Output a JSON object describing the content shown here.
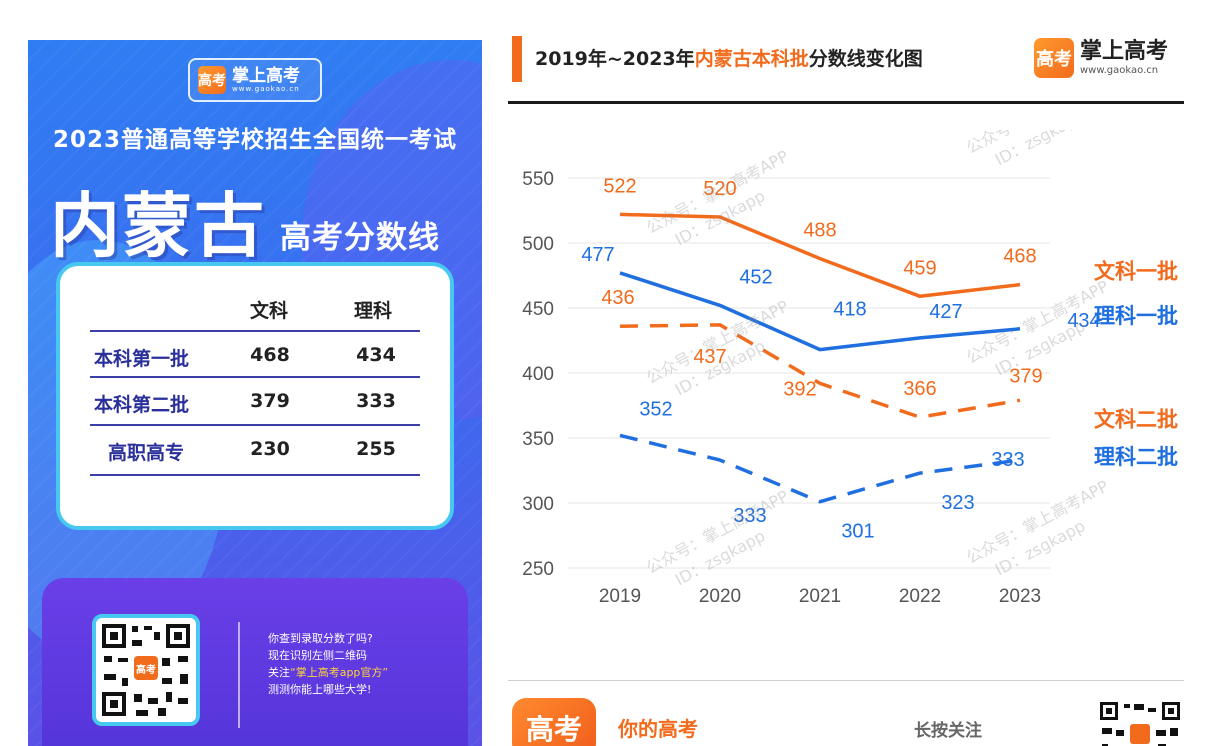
{
  "poster": {
    "logo_name": "掌上高考",
    "logo_url": "www.gaokao.cn",
    "logo_mark": "高考",
    "exam_title": "2023普通高等学校招生全国统一考试",
    "province": "内蒙古",
    "subtitle": "高考分数线",
    "table": {
      "headers": [
        "文科",
        "理科"
      ],
      "rows": [
        {
          "label": "本科第一批",
          "wenke": "468",
          "like": "434"
        },
        {
          "label": "本科第二批",
          "wenke": "379",
          "like": "333"
        },
        {
          "label": "高职高专",
          "wenke": "230",
          "like": "255"
        }
      ]
    },
    "qr_lines": [
      "你查到录取分数了吗?",
      "现在识别左侧二维码",
      "关注",
      "“掌上高考app官方”",
      "测测你能上哪些大学!"
    ]
  },
  "header": {
    "title_prefix": "2019年~2023年",
    "title_highlight": "内蒙古本科批",
    "title_suffix": "分数线变化图",
    "brand_name": "掌上高考",
    "brand_url": "www.gaokao.cn",
    "brand_mark": "高考"
  },
  "footer": {
    "logo_mark": "高考",
    "slogan": "你的高考",
    "follow": "长按关注"
  },
  "chart_data": {
    "type": "line",
    "title": "2019年~2023年内蒙古本科批分数线变化图",
    "categories": [
      "2019",
      "2020",
      "2021",
      "2022",
      "2023"
    ],
    "yticks": [
      550,
      500,
      450,
      400,
      350,
      300,
      250
    ],
    "ylim": [
      250,
      550
    ],
    "xlabel": "",
    "ylabel": "",
    "grid": true,
    "series": [
      {
        "name": "文科一批",
        "values": [
          522,
          520,
          488,
          459,
          468
        ],
        "color": "#f26b1d",
        "dash": false
      },
      {
        "name": "理科一批",
        "values": [
          477,
          452,
          418,
          427,
          434
        ],
        "color": "#1f6fe0",
        "dash": false
      },
      {
        "name": "文科二批",
        "values": [
          436,
          437,
          392,
          366,
          379
        ],
        "color": "#f26b1d",
        "dash": true
      },
      {
        "name": "理科二批",
        "values": [
          352,
          333,
          301,
          323,
          333
        ],
        "color": "#1f6fe0",
        "dash": true
      }
    ],
    "watermarks": [
      "公众号：掌上高考APP",
      "ID：zsgkapp"
    ]
  }
}
